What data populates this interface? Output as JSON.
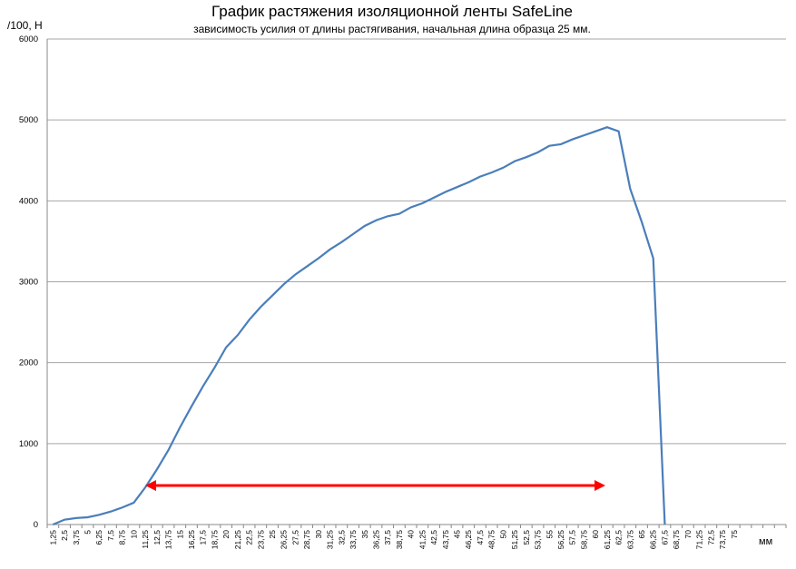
{
  "chart_data": {
    "type": "line",
    "title": "График растяжения изоляционной ленты SafeLine",
    "subtitle": "зависимость усилия от длины растягивания, начальная длина образца 25 мм.",
    "y_label": "/100, Н",
    "x_label": "мм",
    "categories": [
      "1,25",
      "2,5",
      "3,75",
      "5",
      "6,25",
      "7,5",
      "8,75",
      "10",
      "11,25",
      "12,5",
      "13,75",
      "15",
      "16,25",
      "17,5",
      "18,75",
      "20",
      "21,25",
      "22,5",
      "23,75",
      "25",
      "26,25",
      "27,5",
      "28,75",
      "30",
      "31,25",
      "32,5",
      "33,75",
      "35",
      "36,25",
      "37,5",
      "38,75",
      "40",
      "41,25",
      "42,5",
      "43,75",
      "45",
      "46,25",
      "47,5",
      "48,75",
      "50",
      "51,25",
      "52,5",
      "53,75",
      "55",
      "56,25",
      "57,5",
      "58,75",
      "60",
      "61,25",
      "62,5",
      "63,75",
      "65",
      "66,25",
      "67,5",
      "68,75",
      "70",
      "71,25",
      "72,5",
      "73,75",
      "75",
      null,
      null,
      null,
      null
    ],
    "values": [
      0,
      60,
      80,
      90,
      120,
      160,
      210,
      270,
      460,
      680,
      920,
      1200,
      1460,
      1710,
      1940,
      2190,
      2340,
      2530,
      2690,
      2830,
      2970,
      3090,
      3190,
      3290,
      3400,
      3490,
      3590,
      3690,
      3760,
      3810,
      3840,
      3920,
      3970,
      4040,
      4110,
      4170,
      4230,
      4300,
      4350,
      4410,
      4490,
      4540,
      4600,
      4680,
      4700,
      4760,
      4810,
      4860,
      4910,
      4860,
      4150,
      3740,
      3290,
      0,
      null,
      null,
      null,
      null,
      null,
      null,
      null,
      null,
      null,
      null
    ],
    "color": "#4a7ebb",
    "ylim": [
      0,
      6000
    ],
    "yticks": [
      0,
      1000,
      2000,
      3000,
      4000,
      5000,
      6000
    ],
    "grid": true
  }
}
